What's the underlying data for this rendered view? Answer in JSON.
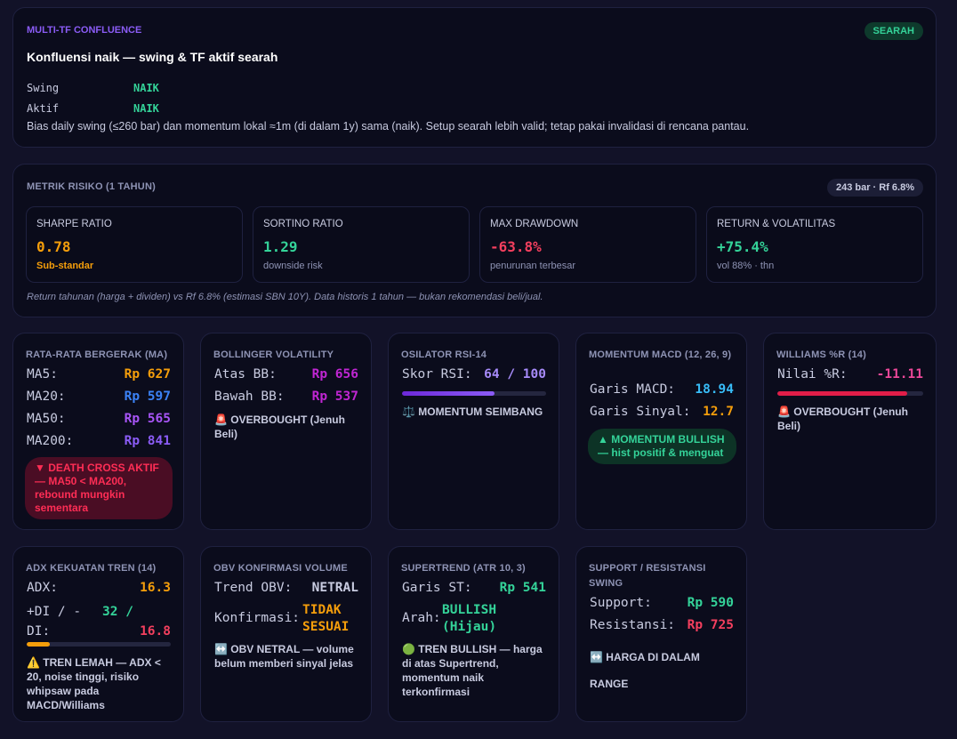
{
  "confluence": {
    "tag": "MULTI-TF CONFLUENCE",
    "badge": "SEARAH",
    "headline": "Konfluensi naik — swing & TF aktif searah",
    "swing_label": "Swing",
    "swing_value": "NAIK",
    "active_label": "Aktif",
    "active_value": "NAIK",
    "description": "Bias daily swing (≤260 bar) dan momentum lokal ≈1m (di dalam 1y) sama (naik). Setup searah lebih valid; tetap pakai invalidasi di rencana pantau."
  },
  "risk": {
    "title": "METRIK RISIKO (1 TAHUN)",
    "badge": "243 bar · Rf 6.8%",
    "footnote": "Return tahunan (harga + dividen) vs Rf 6.8% (estimasi SBN 10Y). Data historis 1 tahun — bukan rekomendasi beli/jual.",
    "metrics": [
      {
        "title": "SHARPE RATIO",
        "value": "0.78",
        "sub": "Sub-standar",
        "color": "#f59e0b",
        "sub_color": "#f59e0b"
      },
      {
        "title": "SORTINO RATIO",
        "value": "1.29",
        "sub": "downside risk",
        "color": "#34d399",
        "sub_color": "#8e93b4"
      },
      {
        "title": "MAX DRAWDOWN",
        "value": "-63.8%",
        "sub": "penurunan terbesar",
        "color": "#f43f5e",
        "sub_color": "#8e93b4"
      },
      {
        "title": "RETURN & VOLATILITAS",
        "value": "+75.4%",
        "sub": "vol 88% · thn",
        "color": "#34d399",
        "sub_color": "#8e93b4"
      }
    ]
  },
  "ma": {
    "title": "RATA-RATA BERGERAK (MA)",
    "rows": [
      {
        "k": "MA5:",
        "v": "Rp 627",
        "color": "#f59e0b"
      },
      {
        "k": "MA20:",
        "v": "Rp 597",
        "color": "#3b82f6"
      },
      {
        "k": "MA50:",
        "v": "Rp 565",
        "color": "#a855f7"
      },
      {
        "k": "MA200:",
        "v": "Rp 841",
        "color": "#8b5cf6"
      }
    ],
    "signal": "▼ DEATH CROSS AKTIF — MA50 < MA200, rebound mungkin sementara"
  },
  "bollinger": {
    "title": "BOLLINGER VOLATILITY",
    "upper_label": "Atas BB:",
    "upper_value": "Rp 656",
    "lower_label": "Bawah BB:",
    "lower_value": "Rp 537",
    "signal": "🚨 OVERBOUGHT (Jenuh Beli)"
  },
  "rsi": {
    "title": "OSILATOR RSI-14",
    "label": "Skor RSI:",
    "value": "64 / 100",
    "level": 0.64,
    "signal": "⚖️ MOMENTUM SEIMBANG"
  },
  "macd": {
    "title": "MOMENTUM MACD (12, 26, 9)",
    "macd_label": "Garis MACD:",
    "macd_value": "18.94",
    "signal_label": "Garis Sinyal:",
    "signal_value": "12.7",
    "signal": "▲ MOMENTUM BULLISH — hist positif & menguat"
  },
  "williams": {
    "title": "WILLIAMS %R (14)",
    "label": "Nilai %R:",
    "value": "-11.11",
    "level": 0.8889,
    "signal": "🚨 OVERBOUGHT (Jenuh Beli)"
  },
  "adx": {
    "title": "ADX KEKUATAN TREN (14)",
    "adx_label": "ADX:",
    "adx_value": "16.3",
    "di_label": "+DI / -DI:",
    "di_plus": "32 /",
    "di_minus": "16.8",
    "level": 0.163,
    "signal": "⚠️ TREN LEMAH — ADX < 20, noise tinggi, risiko whipsaw pada MACD/Williams"
  },
  "obv": {
    "title": "OBV KONFIRMASI VOLUME",
    "trend_label": "Trend OBV:",
    "trend_value": "NETRAL",
    "conf_label": "Konfirmasi:",
    "conf_value": "TIDAK SESUAI",
    "signal": "↔️ OBV NETRAL — volume belum memberi sinyal jelas"
  },
  "supertrend": {
    "title": "SUPERTREND (ATR 10, 3)",
    "st_label": "Garis ST:",
    "st_value": "Rp 541",
    "dir_label": "Arah:",
    "dir_value": "BULLISH (Hijau)",
    "signal": "🟢 TREN BULLISH — harga di atas Supertrend, momentum naik terkonfirmasi"
  },
  "sr": {
    "title": "SUPPORT / RESISTANSI SWING",
    "support_label": "Support:",
    "support_value": "Rp 590",
    "res_label": "Resistansi:",
    "res_value": "Rp 725",
    "signal_1": "↔️ HARGA DI DALAM",
    "signal_2": "RANGE"
  }
}
